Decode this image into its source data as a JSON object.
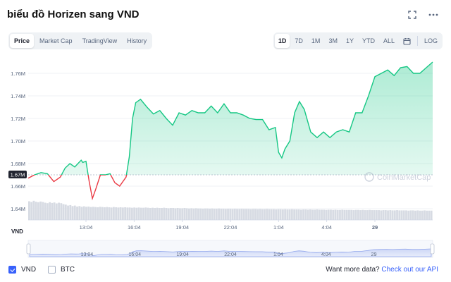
{
  "title": "biểu đồ Horizen sang VND",
  "icons": {
    "expand": "expand-icon",
    "more": "more-options-icon",
    "calendar": "calendar-icon"
  },
  "tabs_left": [
    {
      "label": "Price",
      "active": true
    },
    {
      "label": "Market Cap",
      "active": false
    },
    {
      "label": "TradingView",
      "active": false
    },
    {
      "label": "History",
      "active": false
    }
  ],
  "ranges": [
    {
      "label": "1D",
      "active": true
    },
    {
      "label": "7D",
      "active": false
    },
    {
      "label": "1M",
      "active": false
    },
    {
      "label": "3M",
      "active": false
    },
    {
      "label": "1Y",
      "active": false
    },
    {
      "label": "YTD",
      "active": false
    },
    {
      "label": "ALL",
      "active": false
    }
  ],
  "log_label": "LOG",
  "currency_label": "VND",
  "watermark": "CoinMarketCap",
  "current_price_label": "1.67M",
  "colors": {
    "up": "#16c784",
    "down": "#ea3943",
    "accent": "#3861fb",
    "volume": "#d7dbe3"
  },
  "legend": [
    {
      "label": "VND",
      "checked": true
    },
    {
      "label": "BTC",
      "checked": false
    }
  ],
  "footer": {
    "text": "Want more data?",
    "link": "Check out our API"
  },
  "chart_data": {
    "type": "line",
    "ylim": [
      1.63,
      1.77
    ],
    "yticks": [
      "1.76M",
      "1.74M",
      "1.72M",
      "1.70M",
      "1.68M",
      "1.66M",
      "1.64M"
    ],
    "ytick_values": [
      1.76,
      1.74,
      1.72,
      1.7,
      1.68,
      1.66,
      1.64
    ],
    "xticks": [
      "13:04",
      "16:04",
      "19:04",
      "22:04",
      "1:04",
      "4:04",
      "29"
    ],
    "xtick_positions": [
      1.0,
      4.0,
      7.0,
      10.0,
      13.0,
      16.0,
      19.0
    ],
    "xlim": [
      -2.6,
      22.6
    ],
    "baseline": 1.67,
    "series": [
      {
        "x": [
          -2.6,
          -2.2,
          -1.8,
          -1.4,
          -1.0,
          -0.6,
          -0.3,
          0.0,
          0.3,
          0.5,
          0.7,
          0.8,
          1.0,
          1.2,
          1.4,
          1.6,
          1.9,
          2.2,
          2.5,
          2.8,
          3.1,
          3.5,
          3.7,
          3.9,
          4.1,
          4.4,
          4.8,
          5.2,
          5.6,
          6.0,
          6.4,
          6.8,
          7.2,
          7.6,
          8.0,
          8.4,
          8.8,
          9.2,
          9.6,
          10.0,
          10.4,
          10.8,
          11.2,
          11.6,
          12.0,
          12.4,
          12.8,
          13.0,
          13.2,
          13.4,
          13.7,
          14.0,
          14.3,
          14.6,
          15.0,
          15.4,
          15.8,
          16.2,
          16.6,
          17.0,
          17.4,
          17.8,
          18.2,
          18.6,
          19.0,
          19.4,
          19.8,
          20.2,
          20.6,
          21.0,
          21.4,
          21.8,
          22.2,
          22.6
        ],
        "y": [
          1.667,
          1.67,
          1.672,
          1.671,
          1.664,
          1.668,
          1.676,
          1.68,
          1.677,
          1.68,
          1.683,
          1.681,
          1.682,
          1.664,
          1.649,
          1.657,
          1.67,
          1.67,
          1.671,
          1.663,
          1.66,
          1.668,
          1.686,
          1.72,
          1.734,
          1.737,
          1.73,
          1.724,
          1.727,
          1.72,
          1.714,
          1.725,
          1.723,
          1.727,
          1.725,
          1.725,
          1.731,
          1.725,
          1.733,
          1.725,
          1.725,
          1.723,
          1.72,
          1.719,
          1.719,
          1.71,
          1.712,
          1.69,
          1.685,
          1.693,
          1.7,
          1.725,
          1.735,
          1.728,
          1.708,
          1.703,
          1.708,
          1.703,
          1.708,
          1.71,
          1.708,
          1.725,
          1.725,
          1.74,
          1.757,
          1.76,
          1.763,
          1.758,
          1.765,
          1.766,
          1.76,
          1.76,
          1.765,
          1.77
        ]
      }
    ],
    "volume": [
      0.78,
      0.75,
      0.8,
      0.76,
      0.74,
      0.77,
      0.75,
      0.72,
      0.7,
      0.74,
      0.71,
      0.73,
      0.69,
      0.72,
      0.7,
      0.66,
      0.64,
      0.6,
      0.62,
      0.58,
      0.6,
      0.56,
      0.58,
      0.55,
      0.57,
      0.55,
      0.56,
      0.54,
      0.55,
      0.54,
      0.53,
      0.55,
      0.54,
      0.53,
      0.54,
      0.53,
      0.52,
      0.54,
      0.53,
      0.52,
      0.53,
      0.52,
      0.53,
      0.52,
      0.52,
      0.51,
      0.52,
      0.51,
      0.52,
      0.51,
      0.51,
      0.52,
      0.51,
      0.5,
      0.51,
      0.5,
      0.51,
      0.5,
      0.5,
      0.51,
      0.5,
      0.49,
      0.5,
      0.5,
      0.49,
      0.5,
      0.49,
      0.49,
      0.5,
      0.49,
      0.48,
      0.49,
      0.48,
      0.49,
      0.48,
      0.48,
      0.47,
      0.48,
      0.48,
      0.47,
      0.48,
      0.47,
      0.47,
      0.48,
      0.47,
      0.47,
      0.46,
      0.47,
      0.47,
      0.46,
      0.47,
      0.46,
      0.46,
      0.47,
      0.46,
      0.46,
      0.46,
      0.45,
      0.46,
      0.46,
      0.45,
      0.46,
      0.45,
      0.45,
      0.46,
      0.45,
      0.45,
      0.45,
      0.44,
      0.45,
      0.45,
      0.44,
      0.45,
      0.44,
      0.44,
      0.45,
      0.44,
      0.44,
      0.44,
      0.43,
      0.44,
      0.44,
      0.43,
      0.44,
      0.43,
      0.43,
      0.44,
      0.43,
      0.43,
      0.43,
      0.42,
      0.43,
      0.43,
      0.42,
      0.43,
      0.42,
      0.42,
      0.43,
      0.42,
      0.42,
      0.42,
      0.42,
      0.41,
      0.42,
      0.42,
      0.41,
      0.42,
      0.41,
      0.41,
      0.42,
      0.41,
      0.41,
      0.41,
      0.41,
      0.4,
      0.41,
      0.41,
      0.4,
      0.41,
      0.4,
      0.4,
      0.41,
      0.4,
      0.4,
      0.4,
      0.4,
      0.39,
      0.4,
      0.4,
      0.39,
      0.4,
      0.39,
      0.39,
      0.4,
      0.39,
      0.39,
      0.39
    ]
  }
}
